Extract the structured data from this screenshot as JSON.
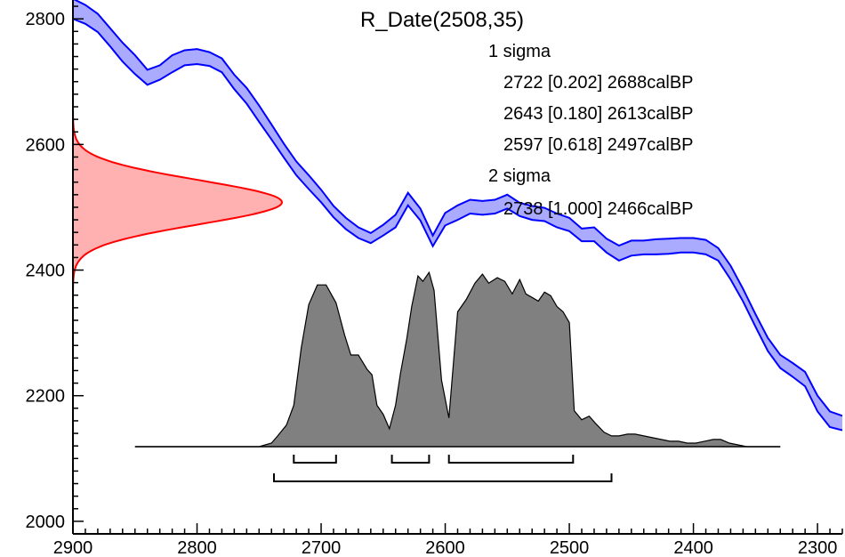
{
  "chart_data": {
    "type": "area",
    "title": "R_Date(2508,35)",
    "xlabel": "",
    "ylabel": "",
    "xlim": [
      2900,
      2280
    ],
    "ylim": [
      1980,
      2830
    ],
    "x_ticks": [
      2900,
      2800,
      2700,
      2600,
      2500,
      2400,
      2300
    ],
    "y_ticks": [
      2000,
      2200,
      2400,
      2600,
      2800
    ],
    "grid": false,
    "annotations": {
      "sigma1_label": "1 sigma",
      "sigma1_ranges": [
        {
          "text": "2722 [0.202] 2688calBP",
          "from": 2722,
          "to": 2688,
          "prob": 0.202
        },
        {
          "text": "2643 [0.180] 2613calBP",
          "from": 2643,
          "to": 2613,
          "prob": 0.18
        },
        {
          "text": "2597 [0.618] 2497calBP",
          "from": 2597,
          "to": 2497,
          "prob": 0.618
        }
      ],
      "sigma2_label": "2 sigma",
      "sigma2_ranges": [
        {
          "text": "2738 [1.000] 2466calBP",
          "from": 2738,
          "to": 2466,
          "prob": 1.0
        }
      ]
    },
    "radiocarbon_date": {
      "mean": 2508,
      "sd": 35,
      "color": "#ff0000",
      "fill": "#ffb0b0"
    },
    "calibration_curve": {
      "color": "#0000ff",
      "fill": "#aaaaff",
      "points": [
        [
          2900,
          2832,
          2800
        ],
        [
          2890,
          2822,
          2792
        ],
        [
          2880,
          2808,
          2779
        ],
        [
          2870,
          2785,
          2756
        ],
        [
          2860,
          2762,
          2732
        ],
        [
          2850,
          2742,
          2712
        ],
        [
          2840,
          2719,
          2695
        ],
        [
          2830,
          2726,
          2703
        ],
        [
          2820,
          2742,
          2715
        ],
        [
          2810,
          2750,
          2726
        ],
        [
          2800,
          2752,
          2728
        ],
        [
          2790,
          2747,
          2725
        ],
        [
          2780,
          2737,
          2715
        ],
        [
          2770,
          2711,
          2688
        ],
        [
          2760,
          2690,
          2665
        ],
        [
          2750,
          2662,
          2636
        ],
        [
          2740,
          2632,
          2608
        ],
        [
          2730,
          2601,
          2579
        ],
        [
          2720,
          2573,
          2551
        ],
        [
          2710,
          2551,
          2529
        ],
        [
          2700,
          2528,
          2508
        ],
        [
          2690,
          2502,
          2484
        ],
        [
          2680,
          2483,
          2465
        ],
        [
          2670,
          2468,
          2451
        ],
        [
          2660,
          2459,
          2443
        ],
        [
          2650,
          2472,
          2455
        ],
        [
          2640,
          2488,
          2468
        ],
        [
          2630,
          2523,
          2503
        ],
        [
          2620,
          2498,
          2479
        ],
        [
          2610,
          2455,
          2438
        ],
        [
          2600,
          2491,
          2471
        ],
        [
          2590,
          2503,
          2480
        ],
        [
          2580,
          2512,
          2490
        ],
        [
          2570,
          2510,
          2488
        ],
        [
          2560,
          2512,
          2490
        ],
        [
          2550,
          2520,
          2498
        ],
        [
          2540,
          2507,
          2486
        ],
        [
          2530,
          2502,
          2480
        ],
        [
          2520,
          2499,
          2478
        ],
        [
          2510,
          2490,
          2468
        ],
        [
          2500,
          2483,
          2462
        ],
        [
          2490,
          2466,
          2446
        ],
        [
          2480,
          2468,
          2446
        ],
        [
          2470,
          2450,
          2428
        ],
        [
          2460,
          2439,
          2415
        ],
        [
          2450,
          2447,
          2423
        ],
        [
          2440,
          2447,
          2425
        ],
        [
          2430,
          2449,
          2425
        ],
        [
          2420,
          2450,
          2426
        ],
        [
          2410,
          2451,
          2428
        ],
        [
          2400,
          2451,
          2428
        ],
        [
          2390,
          2448,
          2425
        ],
        [
          2380,
          2435,
          2415
        ],
        [
          2370,
          2407,
          2385
        ],
        [
          2360,
          2370,
          2350
        ],
        [
          2350,
          2330,
          2310
        ],
        [
          2340,
          2292,
          2271
        ],
        [
          2330,
          2265,
          2244
        ],
        [
          2320,
          2252,
          2230
        ],
        [
          2310,
          2238,
          2215
        ],
        [
          2300,
          2200,
          2175
        ],
        [
          2290,
          2175,
          2150
        ],
        [
          2280,
          2168,
          2145
        ]
      ]
    },
    "probability_distribution": {
      "color": "#000000",
      "fill": "#808080",
      "x": [
        2850,
        2750,
        2740,
        2735,
        2728,
        2722,
        2716,
        2710,
        2703,
        2696,
        2688,
        2681,
        2676,
        2670,
        2663,
        2659,
        2655,
        2650,
        2645,
        2640,
        2636,
        2631,
        2627,
        2622,
        2618,
        2613,
        2609,
        2603,
        2597,
        2590,
        2583,
        2576,
        2570,
        2565,
        2558,
        2552,
        2546,
        2540,
        2535,
        2530,
        2525,
        2520,
        2515,
        2510,
        2505,
        2500,
        2496,
        2490,
        2484,
        2479,
        2472,
        2466,
        2460,
        2453,
        2447,
        2440,
        2433,
        2426,
        2419,
        2412,
        2405,
        2398,
        2391,
        2384,
        2378,
        2371,
        2364,
        2357,
        2350,
        2330
      ],
      "y": [
        0.0,
        0.0,
        0.02,
        0.06,
        0.12,
        0.23,
        0.55,
        0.79,
        0.9,
        0.9,
        0.8,
        0.62,
        0.51,
        0.51,
        0.43,
        0.4,
        0.23,
        0.18,
        0.1,
        0.23,
        0.41,
        0.6,
        0.78,
        0.95,
        0.92,
        0.97,
        0.87,
        0.37,
        0.16,
        0.75,
        0.82,
        0.91,
        0.96,
        0.91,
        0.94,
        0.92,
        0.85,
        0.93,
        0.85,
        0.83,
        0.81,
        0.86,
        0.84,
        0.78,
        0.75,
        0.69,
        0.2,
        0.15,
        0.17,
        0.13,
        0.08,
        0.06,
        0.06,
        0.07,
        0.07,
        0.06,
        0.05,
        0.04,
        0.03,
        0.03,
        0.02,
        0.02,
        0.03,
        0.04,
        0.04,
        0.02,
        0.01,
        0.0,
        0.0,
        0.0
      ]
    }
  }
}
